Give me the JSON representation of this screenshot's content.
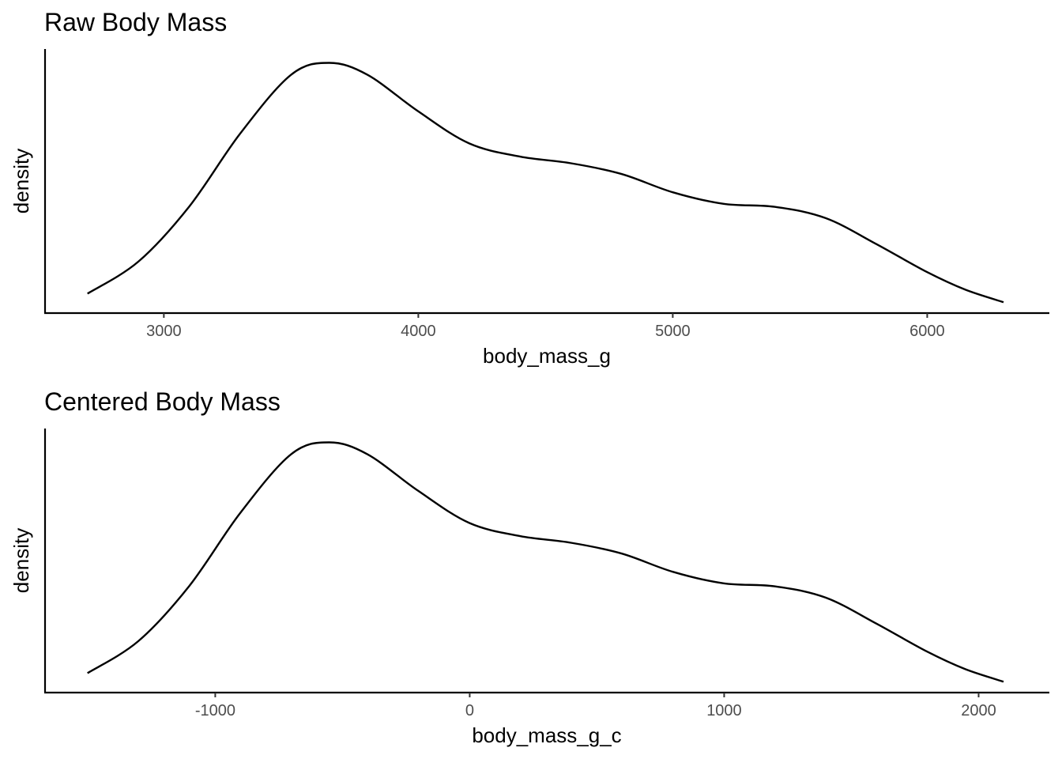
{
  "chart_data": [
    {
      "type": "density",
      "title": "Raw Body Mass",
      "xlabel": "body_mass_g",
      "ylabel": "density",
      "xlim": [
        2530,
        6480
      ],
      "xticks": [
        3000,
        4000,
        5000,
        6000
      ],
      "yticks": [],
      "x": [
        2700,
        2900,
        3100,
        3300,
        3500,
        3650,
        3800,
        4000,
        4200,
        4400,
        4600,
        4800,
        5000,
        5200,
        5400,
        5600,
        5800,
        6000,
        6150,
        6300
      ],
      "y": [
        0.059,
        0.156,
        0.323,
        0.544,
        0.722,
        0.758,
        0.722,
        0.611,
        0.514,
        0.474,
        0.454,
        0.421,
        0.366,
        0.331,
        0.322,
        0.288,
        0.209,
        0.124,
        0.071,
        0.033
      ],
      "ylim": [
        0,
        0.8
      ],
      "grid": false,
      "color": "#000000"
    },
    {
      "type": "density",
      "title": "Centered Body Mass",
      "xlabel": "body_mass_g_c",
      "ylabel": "density",
      "xlim": [
        -1672,
        2278
      ],
      "xticks": [
        -1000,
        0,
        1000,
        2000
      ],
      "yticks": [],
      "x": [
        -1502,
        -1302,
        -1102,
        -902,
        -702,
        -552,
        -402,
        -202,
        -2,
        198,
        398,
        598,
        798,
        998,
        1198,
        1398,
        1598,
        1798,
        1948,
        2098
      ],
      "y": [
        0.059,
        0.156,
        0.323,
        0.544,
        0.722,
        0.758,
        0.722,
        0.611,
        0.514,
        0.474,
        0.454,
        0.421,
        0.366,
        0.331,
        0.322,
        0.288,
        0.209,
        0.124,
        0.071,
        0.033
      ],
      "ylim": [
        0,
        0.8
      ],
      "grid": false,
      "color": "#000000"
    }
  ]
}
